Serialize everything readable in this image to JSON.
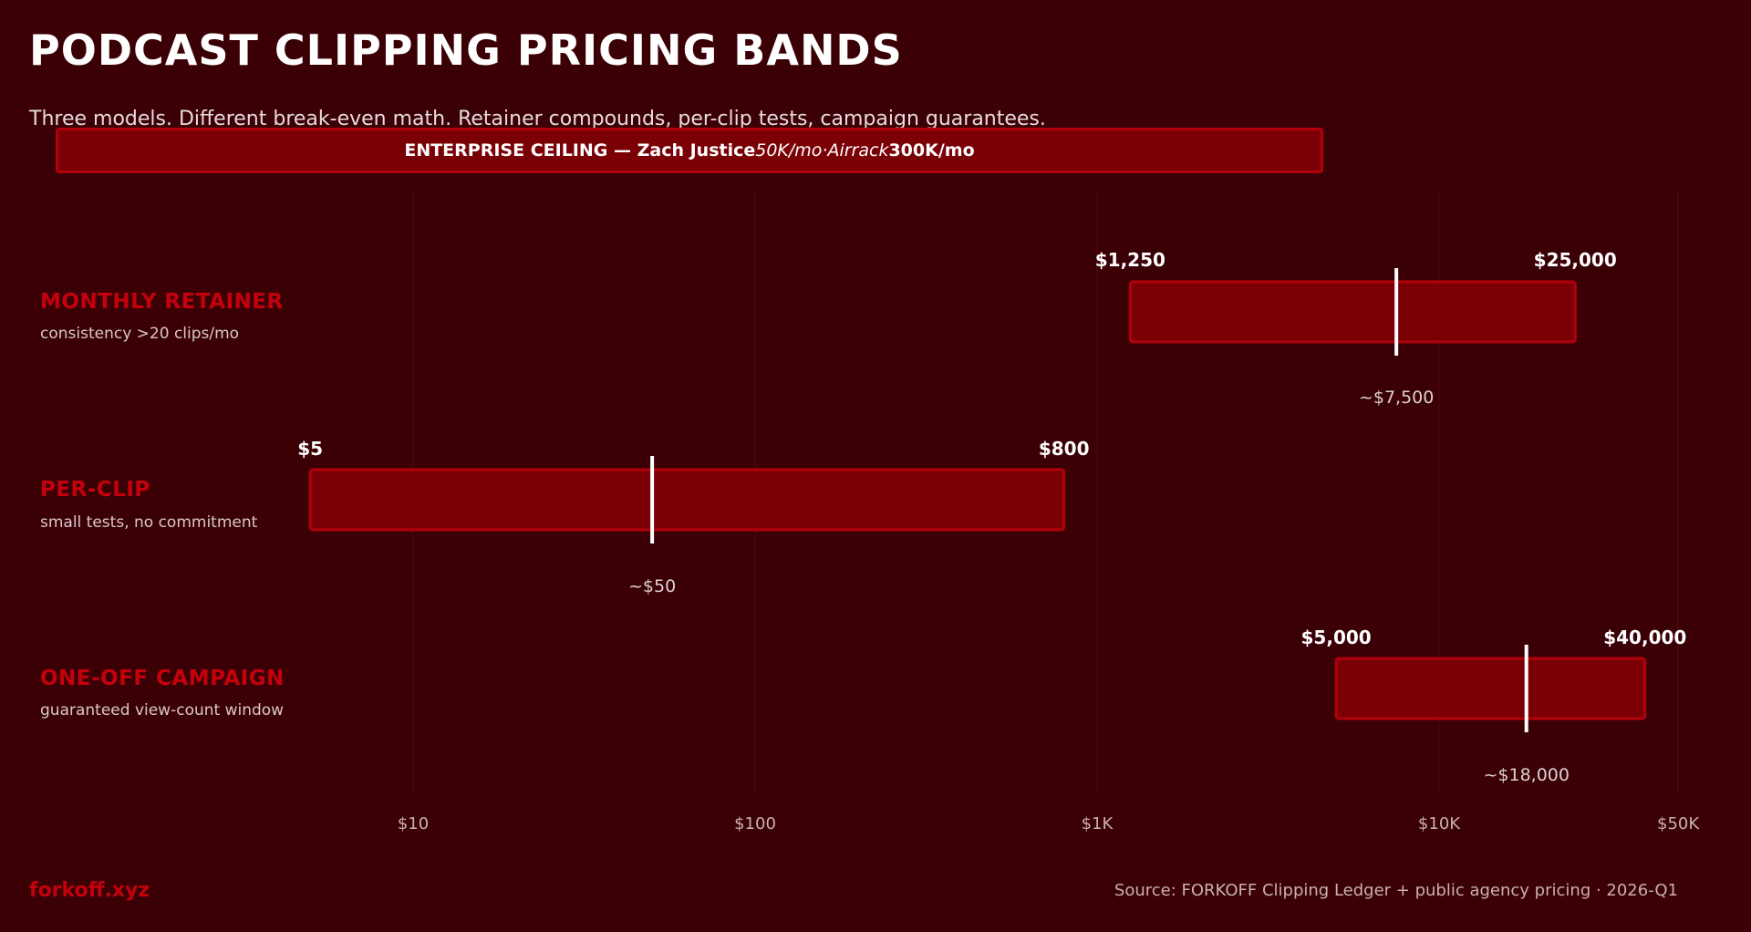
{
  "chart_data": {
    "type": "range-bar",
    "title": "PODCAST CLIPPING PRICING BANDS",
    "subtitle": "Three models. Different break-even math. Retainer compounds, per-clip tests, campaign guarantees.",
    "banner": {
      "bold_prefix": "ENTERPRISE CEILING — Zach Justice ",
      "italic_middle": "50K/mo·Airrack",
      "bold_suffix": "300K/mo"
    },
    "x_scale": "log",
    "xlim": [
      3,
      60000
    ],
    "grid": true,
    "ticks": [
      {
        "value": 10,
        "label": "$10"
      },
      {
        "value": 100,
        "label": "$100"
      },
      {
        "value": 1000,
        "label": "$1K"
      },
      {
        "value": 10000,
        "label": "$10K"
      },
      {
        "value": 50000,
        "label": "$50K"
      }
    ],
    "series": [
      {
        "name": "MONTHLY RETAINER",
        "note": "consistency >20 clips/mo",
        "low": 1250,
        "high": 25000,
        "typical": 7500,
        "low_label": "$1,250",
        "high_label": "$25,000",
        "typical_label": "~$7,500"
      },
      {
        "name": "PER-CLIP",
        "note": "small tests, no commitment",
        "low": 5,
        "high": 800,
        "typical": 50,
        "low_label": "$5",
        "high_label": "$800",
        "typical_label": "~$50"
      },
      {
        "name": "ONE-OFF CAMPAIGN",
        "note": "guaranteed view-count window",
        "low": 5000,
        "high": 40000,
        "typical": 18000,
        "low_label": "$5,000",
        "high_label": "$40,000",
        "typical_label": "~$18,000"
      }
    ],
    "colors": {
      "background": "#3a0005",
      "bar_fill": "#7a0005",
      "bar_border": "#b3000a",
      "accent": "#c4000c",
      "typical_marker": "#ffffff"
    }
  },
  "footer": {
    "brand": "forkoff.xyz",
    "source": "Source: FORKOFF Clipping Ledger + public agency pricing · 2026-Q1"
  }
}
